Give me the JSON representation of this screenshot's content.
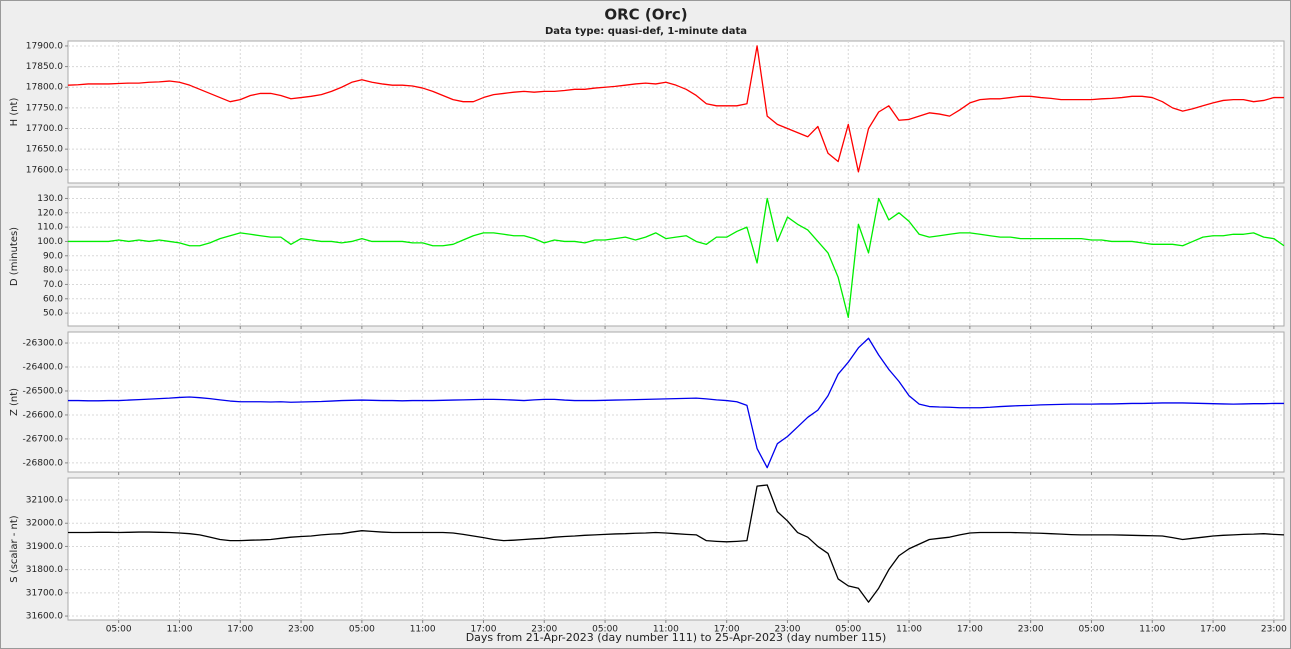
{
  "title": "ORC (Orc)",
  "subtitle": "Data type: quasi-def, 1-minute data",
  "xlabel": "Days from 21-Apr-2023 (day number 111) to 25-Apr-2023 (day number 115)",
  "grid": true,
  "xlim": [
    0,
    120
  ],
  "xticks": [
    {
      "value": 5,
      "label": "05:00"
    },
    {
      "value": 11,
      "label": "11:00"
    },
    {
      "value": 17,
      "label": "17:00"
    },
    {
      "value": 23,
      "label": "23:00"
    },
    {
      "value": 29,
      "label": "05:00"
    },
    {
      "value": 35,
      "label": "11:00"
    },
    {
      "value": 41,
      "label": "17:00"
    },
    {
      "value": 47,
      "label": "23:00"
    },
    {
      "value": 53,
      "label": "05:00"
    },
    {
      "value": 59,
      "label": "11:00"
    },
    {
      "value": 65,
      "label": "17:00"
    },
    {
      "value": 71,
      "label": "23:00"
    },
    {
      "value": 77,
      "label": "05:00"
    },
    {
      "value": 83,
      "label": "11:00"
    },
    {
      "value": 89,
      "label": "17:00"
    },
    {
      "value": 95,
      "label": "23:00"
    },
    {
      "value": 101,
      "label": "05:00"
    },
    {
      "value": 107,
      "label": "11:00"
    },
    {
      "value": 113,
      "label": "17:00"
    },
    {
      "value": 119,
      "label": "23:00"
    }
  ],
  "x": [
    0,
    1,
    2,
    3,
    4,
    5,
    6,
    7,
    8,
    9,
    10,
    11,
    12,
    13,
    14,
    15,
    16,
    17,
    18,
    19,
    20,
    21,
    22,
    23,
    24,
    25,
    26,
    27,
    28,
    29,
    30,
    31,
    32,
    33,
    34,
    35,
    36,
    37,
    38,
    39,
    40,
    41,
    42,
    43,
    44,
    45,
    46,
    47,
    48,
    49,
    50,
    51,
    52,
    53,
    54,
    55,
    56,
    57,
    58,
    59,
    60,
    61,
    62,
    63,
    64,
    65,
    66,
    67,
    68,
    69,
    70,
    71,
    72,
    73,
    74,
    75,
    76,
    77,
    78,
    79,
    80,
    81,
    82,
    83,
    84,
    85,
    86,
    87,
    88,
    89,
    90,
    91,
    92,
    93,
    94,
    95,
    96,
    97,
    98,
    99,
    100,
    101,
    102,
    103,
    104,
    105,
    106,
    107,
    108,
    109,
    110,
    111,
    112,
    113,
    114,
    115,
    116,
    117,
    118,
    119,
    120
  ],
  "chart_data": [
    {
      "type": "line",
      "ylabel": "H (nt)",
      "color": "#ff0000",
      "ylim": [
        17568,
        17912
      ],
      "yticks": [
        {
          "value": 17600,
          "label": "17600.0"
        },
        {
          "value": 17650,
          "label": "17650.0"
        },
        {
          "value": 17700,
          "label": "17700.0"
        },
        {
          "value": 17750,
          "label": "17750.0"
        },
        {
          "value": 17800,
          "label": "17800.0"
        },
        {
          "value": 17850,
          "label": "17850.0"
        },
        {
          "value": 17900,
          "label": "17900.0"
        }
      ],
      "values": [
        17805,
        17806,
        17808,
        17808,
        17808,
        17809,
        17810,
        17810,
        17812,
        17813,
        17815,
        17812,
        17805,
        17795,
        17785,
        17775,
        17765,
        17770,
        17780,
        17785,
        17785,
        17780,
        17772,
        17775,
        17778,
        17782,
        17790,
        17800,
        17812,
        17818,
        17812,
        17808,
        17805,
        17805,
        17803,
        17798,
        17790,
        17780,
        17770,
        17765,
        17765,
        17775,
        17782,
        17785,
        17788,
        17790,
        17788,
        17790,
        17790,
        17792,
        17795,
        17795,
        17798,
        17800,
        17802,
        17805,
        17808,
        17810,
        17808,
        17812,
        17805,
        17795,
        17780,
        17760,
        17755,
        17755,
        17755,
        17760,
        17900,
        17730,
        17710,
        17700,
        17690,
        17680,
        17705,
        17640,
        17620,
        17710,
        17595,
        17700,
        17740,
        17755,
        17720,
        17722,
        17730,
        17738,
        17735,
        17730,
        17745,
        17762,
        17770,
        17772,
        17772,
        17775,
        17778,
        17778,
        17775,
        17773,
        17770,
        17770,
        17770,
        17770,
        17772,
        17773,
        17775,
        17778,
        17778,
        17775,
        17765,
        17750,
        17742,
        17748,
        17755,
        17762,
        17768,
        17770,
        17770,
        17765,
        17768,
        17775,
        17775
      ]
    },
    {
      "type": "line",
      "ylabel": "D (minutes)",
      "color": "#00ee00",
      "ylim": [
        41,
        138
      ],
      "yticks": [
        {
          "value": 50,
          "label": "50.0"
        },
        {
          "value": 60,
          "label": "60.0"
        },
        {
          "value": 70,
          "label": "70.0"
        },
        {
          "value": 80,
          "label": "80.0"
        },
        {
          "value": 90,
          "label": "90.0"
        },
        {
          "value": 100,
          "label": "100.0"
        },
        {
          "value": 110,
          "label": "110.0"
        },
        {
          "value": 120,
          "label": "120.0"
        },
        {
          "value": 130,
          "label": "130.0"
        }
      ],
      "values": [
        100,
        100,
        100,
        100,
        100,
        101,
        100,
        101,
        100,
        101,
        100,
        99,
        97,
        97,
        99,
        102,
        104,
        106,
        105,
        104,
        103,
        103,
        98,
        102,
        101,
        100,
        100,
        99,
        100,
        102,
        100,
        100,
        100,
        100,
        99,
        99,
        97,
        97,
        98,
        101,
        104,
        106,
        106,
        105,
        104,
        104,
        102,
        99,
        101,
        100,
        100,
        99,
        101,
        101,
        102,
        103,
        101,
        103,
        106,
        102,
        103,
        104,
        100,
        98,
        103,
        103,
        107,
        110,
        85,
        130,
        100,
        117,
        112,
        108,
        100,
        92,
        75,
        47,
        112,
        92,
        130,
        115,
        120,
        114,
        105,
        103,
        104,
        105,
        106,
        106,
        105,
        104,
        103,
        103,
        102,
        102,
        102,
        102,
        102,
        102,
        102,
        101,
        101,
        100,
        100,
        100,
        99,
        98,
        98,
        98,
        97,
        100,
        103,
        104,
        104,
        105,
        105,
        106,
        103,
        102,
        97
      ]
    },
    {
      "type": "line",
      "ylabel": "Z (nt)",
      "color": "#0000ee",
      "ylim": [
        -26838,
        -26254
      ],
      "yticks": [
        {
          "value": -26800,
          "label": "-26800.0"
        },
        {
          "value": -26700,
          "label": "-26700.0"
        },
        {
          "value": -26600,
          "label": "-26600.0"
        },
        {
          "value": -26500,
          "label": "-26500.0"
        },
        {
          "value": -26400,
          "label": "-26400.0"
        },
        {
          "value": -26300,
          "label": "-26300.0"
        }
      ],
      "values": [
        -26540,
        -26540,
        -26541,
        -26541,
        -26540,
        -26540,
        -26538,
        -26536,
        -26534,
        -26532,
        -26530,
        -26527,
        -26525,
        -26528,
        -26532,
        -26537,
        -26542,
        -26545,
        -26545,
        -26545,
        -26546,
        -26545,
        -26547,
        -26546,
        -26545,
        -26544,
        -26542,
        -26540,
        -26539,
        -26538,
        -26539,
        -26540,
        -26540,
        -26541,
        -26540,
        -26540,
        -26540,
        -26539,
        -26538,
        -26537,
        -26536,
        -26535,
        -26535,
        -26536,
        -26538,
        -26540,
        -26537,
        -26535,
        -26535,
        -26538,
        -26540,
        -26540,
        -26540,
        -26539,
        -26538,
        -26537,
        -26536,
        -26535,
        -26534,
        -26533,
        -26532,
        -26531,
        -26530,
        -26533,
        -26537,
        -26540,
        -26545,
        -26560,
        -26740,
        -26820,
        -26720,
        -26690,
        -26650,
        -26610,
        -26580,
        -26520,
        -26430,
        -26380,
        -26320,
        -26280,
        -26350,
        -26410,
        -26460,
        -26520,
        -26555,
        -26565,
        -26567,
        -26568,
        -26570,
        -26570,
        -26570,
        -26568,
        -26565,
        -26563,
        -26561,
        -26560,
        -26558,
        -26557,
        -26556,
        -26555,
        -26555,
        -26555,
        -26554,
        -26554,
        -26553,
        -26552,
        -26552,
        -26551,
        -26550,
        -26550,
        -26550,
        -26551,
        -26552,
        -26553,
        -26554,
        -26555,
        -26554,
        -26553,
        -26553,
        -26552,
        -26552
      ]
    },
    {
      "type": "line",
      "ylabel": "S (scalar - nt)",
      "color": "#000000",
      "ylim": [
        31583,
        32195
      ],
      "yticks": [
        {
          "value": 31600,
          "label": "31600.0"
        },
        {
          "value": 31700,
          "label": "31700.0"
        },
        {
          "value": 31800,
          "label": "31800.0"
        },
        {
          "value": 31900,
          "label": "31900.0"
        },
        {
          "value": 32000,
          "label": "32000.0"
        },
        {
          "value": 32100,
          "label": "32100.0"
        }
      ],
      "values": [
        31960,
        31960,
        31960,
        31961,
        31961,
        31960,
        31961,
        31962,
        31962,
        31961,
        31960,
        31958,
        31955,
        31950,
        31940,
        31930,
        31925,
        31925,
        31927,
        31928,
        31930,
        31935,
        31940,
        31943,
        31945,
        31950,
        31953,
        31955,
        31962,
        31968,
        31965,
        31962,
        31960,
        31960,
        31960,
        31960,
        31960,
        31960,
        31958,
        31952,
        31945,
        31938,
        31930,
        31925,
        31927,
        31930,
        31933,
        31935,
        31940,
        31943,
        31945,
        31948,
        31950,
        31952,
        31954,
        31955,
        31957,
        31958,
        31960,
        31958,
        31955,
        31952,
        31950,
        31925,
        31922,
        31920,
        31922,
        31925,
        32160,
        32165,
        32050,
        32010,
        31960,
        31940,
        31900,
        31870,
        31760,
        31730,
        31720,
        31660,
        31720,
        31800,
        31860,
        31890,
        31910,
        31930,
        31935,
        31940,
        31950,
        31958,
        31960,
        31960,
        31960,
        31960,
        31959,
        31958,
        31957,
        31955,
        31953,
        31951,
        31950,
        31950,
        31950,
        31950,
        31949,
        31948,
        31947,
        31946,
        31945,
        31938,
        31930,
        31935,
        31940,
        31945,
        31948,
        31950,
        31952,
        31953,
        31955,
        31952,
        31950
      ]
    }
  ]
}
